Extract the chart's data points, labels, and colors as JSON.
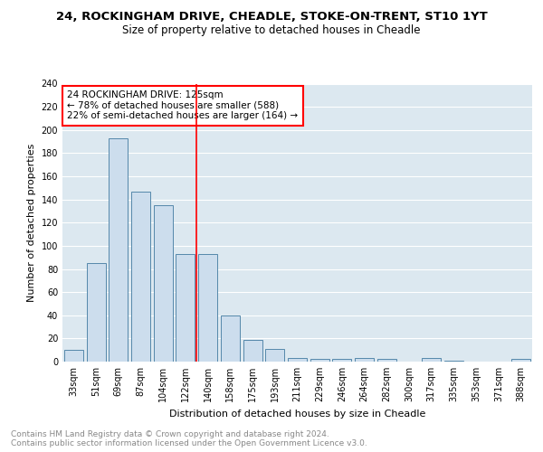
{
  "title_line1": "24, ROCKINGHAM DRIVE, CHEADLE, STOKE-ON-TRENT, ST10 1YT",
  "title_line2": "Size of property relative to detached houses in Cheadle",
  "xlabel": "Distribution of detached houses by size in Cheadle",
  "ylabel": "Number of detached properties",
  "categories": [
    "33sqm",
    "51sqm",
    "69sqm",
    "87sqm",
    "104sqm",
    "122sqm",
    "140sqm",
    "158sqm",
    "175sqm",
    "193sqm",
    "211sqm",
    "229sqm",
    "246sqm",
    "264sqm",
    "282sqm",
    "300sqm",
    "317sqm",
    "335sqm",
    "353sqm",
    "371sqm",
    "388sqm"
  ],
  "values": [
    10,
    85,
    193,
    147,
    135,
    93,
    93,
    40,
    19,
    11,
    3,
    2,
    2,
    3,
    2,
    0,
    3,
    1,
    0,
    0,
    2
  ],
  "bar_color": "#ccdded",
  "bar_edge_color": "#5588aa",
  "vline_index": 5.5,
  "annotation_text": "24 ROCKINGHAM DRIVE: 125sqm\n← 78% of detached houses are smaller (588)\n22% of semi-detached houses are larger (164) →",
  "ylim": [
    0,
    240
  ],
  "yticks": [
    0,
    20,
    40,
    60,
    80,
    100,
    120,
    140,
    160,
    180,
    200,
    220,
    240
  ],
  "footer_text": "Contains HM Land Registry data © Crown copyright and database right 2024.\nContains public sector information licensed under the Open Government Licence v3.0.",
  "plot_bg_color": "#dce8f0",
  "grid_color": "white",
  "title_fontsize": 9.5,
  "subtitle_fontsize": 8.5,
  "axis_label_fontsize": 8,
  "tick_fontsize": 7,
  "annotation_fontsize": 7.5,
  "footer_fontsize": 6.5
}
